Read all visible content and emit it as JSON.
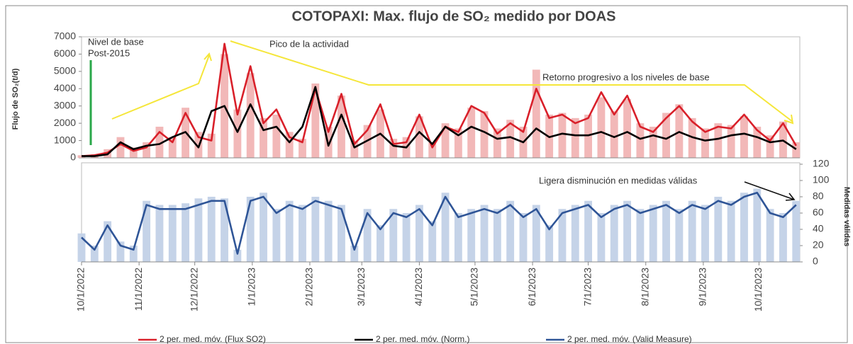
{
  "chart_data": [
    {
      "type": "line",
      "title": "COTOPAXI: Max. flujo de SO₂ medido por DOAS",
      "ylabel": "Flujo de SO₂(t/d)",
      "annotations": [
        "Nivel de base",
        "Post-2015",
        "Pico de la actividad",
        "Retorno progresivo a los niveles de base"
      ],
      "x": [
        "10/1/2022",
        "10/8/2022",
        "10/15/2022",
        "10/22/2022",
        "10/29/2022",
        "11/5/2022",
        "11/12/2022",
        "11/19/2022",
        "11/26/2022",
        "12/3/2022",
        "12/10/2022",
        "12/17/2022",
        "12/24/2022",
        "12/31/2022",
        "1/7/2023",
        "1/14/2023",
        "1/21/2023",
        "1/28/2023",
        "2/4/2023",
        "2/11/2023",
        "2/18/2023",
        "2/25/2023",
        "3/4/2023",
        "3/11/2023",
        "3/18/2023",
        "3/25/2023",
        "4/1/2023",
        "4/8/2023",
        "4/15/2023",
        "4/22/2023",
        "4/29/2023",
        "5/6/2023",
        "5/13/2023",
        "5/20/2023",
        "5/27/2023",
        "6/3/2023",
        "6/10/2023",
        "6/17/2023",
        "6/24/2023",
        "7/1/2023",
        "7/8/2023",
        "7/15/2023",
        "7/22/2023",
        "7/29/2023",
        "8/5/2023",
        "8/12/2023",
        "8/19/2023",
        "8/26/2023",
        "9/2/2023",
        "9/9/2023",
        "9/16/2023",
        "9/23/2023",
        "9/30/2023",
        "10/7/2023",
        "10/14/2023",
        "10/21/2023"
      ],
      "xlim": [
        "10/1/2022",
        "10/23/2023"
      ],
      "ylim": [
        0,
        7000
      ],
      "yticks": [
        0,
        1000,
        2000,
        3000,
        4000,
        5000,
        6000,
        7000
      ],
      "series": [
        {
          "type": "bar",
          "color": "#f2b8b8",
          "values": [
            150,
            200,
            500,
            1200,
            600,
            900,
            1800,
            1200,
            2900,
            1500,
            1400,
            6000,
            2800,
            4900,
            2300,
            2500,
            1500,
            1100,
            4300,
            1800,
            3600,
            1000,
            1900,
            2800,
            1100,
            1200,
            2400,
            900,
            2000,
            1700,
            2900,
            2700,
            1700,
            2200,
            1800,
            5100,
            2500,
            2600,
            2300,
            2500,
            3500,
            2700,
            3400,
            2000,
            1800,
            2600,
            3100,
            2300,
            1700,
            2000,
            1900,
            2400,
            1800,
            1300,
            2100,
            900
          ]
        },
        {
          "type": "line",
          "name": "2 per. med. móv. (Flux SO2)",
          "color": "#d9202a",
          "values": [
            100,
            150,
            300,
            800,
            400,
            600,
            1500,
            900,
            2600,
            1200,
            1000,
            6600,
            2500,
            5300,
            2000,
            2800,
            1200,
            900,
            4000,
            1500,
            3700,
            800,
            1600,
            3100,
            800,
            900,
            2500,
            600,
            1800,
            1500,
            3000,
            2600,
            1400,
            2000,
            1500,
            4000,
            2300,
            2500,
            2000,
            2300,
            3800,
            2500,
            3600,
            1800,
            1500,
            2300,
            3000,
            2100,
            1500,
            1800,
            1700,
            2500,
            1600,
            1000,
            2000,
            700
          ]
        },
        {
          "type": "line",
          "name": "2 per. med. móv. (Norm.)",
          "color": "#000000",
          "values": [
            100,
            100,
            200,
            900,
            500,
            700,
            800,
            1200,
            1500,
            600,
            2700,
            3000,
            1500,
            3100,
            1600,
            1800,
            900,
            1800,
            4100,
            700,
            2500,
            600,
            1000,
            1400,
            700,
            600,
            1500,
            800,
            1800,
            1300,
            1800,
            1500,
            1100,
            1200,
            900,
            1700,
            1200,
            1400,
            1300,
            1300,
            1500,
            1200,
            1500,
            1100,
            1300,
            1100,
            1500,
            1200,
            1000,
            1100,
            1300,
            1400,
            1200,
            900,
            1000,
            500
          ]
        }
      ]
    },
    {
      "type": "line",
      "ylabel": "Medidas válidas",
      "annotations": [
        "Ligera disminución en medidas válidas"
      ],
      "x": [
        "10/1/2022",
        "10/8/2022",
        "10/15/2022",
        "10/22/2022",
        "10/29/2022",
        "11/5/2022",
        "11/12/2022",
        "11/19/2022",
        "11/26/2022",
        "12/3/2022",
        "12/10/2022",
        "12/17/2022",
        "12/24/2022",
        "12/31/2022",
        "1/7/2023",
        "1/14/2023",
        "1/21/2023",
        "1/28/2023",
        "2/4/2023",
        "2/11/2023",
        "2/18/2023",
        "2/25/2023",
        "3/4/2023",
        "3/11/2023",
        "3/18/2023",
        "3/25/2023",
        "4/1/2023",
        "4/8/2023",
        "4/15/2023",
        "4/22/2023",
        "4/29/2023",
        "5/6/2023",
        "5/13/2023",
        "5/20/2023",
        "5/27/2023",
        "6/3/2023",
        "6/10/2023",
        "6/17/2023",
        "6/24/2023",
        "7/1/2023",
        "7/8/2023",
        "7/15/2023",
        "7/22/2023",
        "7/29/2023",
        "8/5/2023",
        "8/12/2023",
        "8/19/2023",
        "8/26/2023",
        "9/2/2023",
        "9/9/2023",
        "9/16/2023",
        "9/23/2023",
        "9/30/2023",
        "10/7/2023",
        "10/14/2023",
        "10/21/2023"
      ],
      "xlim": [
        "10/1/2022",
        "10/23/2023"
      ],
      "xticks": [
        "10/1/2022",
        "11/1/2022",
        "12/1/2022",
        "1/1/2023",
        "2/1/2023",
        "3/1/2023",
        "4/1/2023",
        "5/1/2023",
        "6/1/2023",
        "7/1/2023",
        "8/1/2023",
        "9/1/2023",
        "10/1/2023"
      ],
      "ylim": [
        0,
        120
      ],
      "yticks": [
        0,
        20,
        40,
        60,
        80,
        100,
        120
      ],
      "series": [
        {
          "type": "bar",
          "color": "#c5d3e8",
          "values": [
            35,
            20,
            50,
            25,
            20,
            75,
            70,
            70,
            72,
            78,
            80,
            78,
            15,
            80,
            85,
            65,
            75,
            70,
            80,
            75,
            70,
            20,
            65,
            45,
            65,
            60,
            70,
            50,
            85,
            60,
            65,
            70,
            65,
            75,
            60,
            70,
            45,
            65,
            70,
            75,
            60,
            70,
            75,
            65,
            70,
            75,
            65,
            75,
            70,
            80,
            75,
            85,
            90,
            65,
            60,
            75
          ]
        },
        {
          "type": "line",
          "name": "2 per. med. móv. (Valid Measure)",
          "color": "#2f5597",
          "values": [
            30,
            15,
            45,
            20,
            15,
            70,
            65,
            65,
            65,
            70,
            75,
            75,
            10,
            75,
            80,
            60,
            70,
            65,
            75,
            70,
            65,
            15,
            60,
            40,
            60,
            55,
            65,
            45,
            80,
            55,
            60,
            65,
            60,
            70,
            55,
            65,
            40,
            60,
            65,
            70,
            55,
            65,
            70,
            60,
            65,
            70,
            60,
            70,
            65,
            75,
            70,
            80,
            85,
            60,
            55,
            70
          ]
        }
      ]
    }
  ]
}
